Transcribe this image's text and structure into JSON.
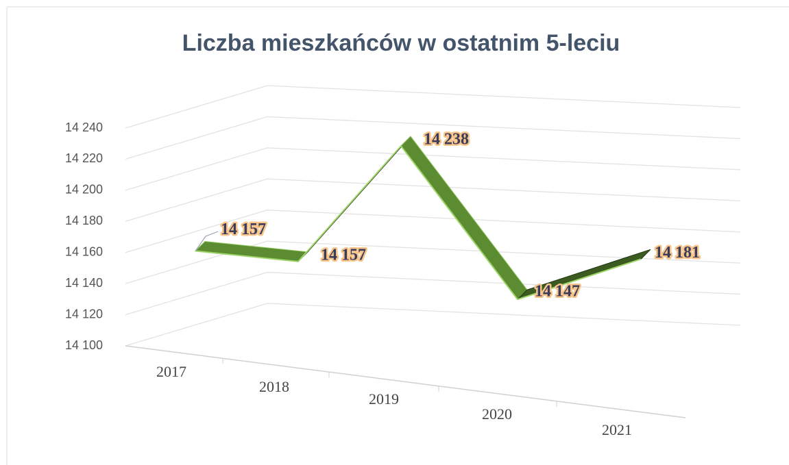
{
  "chart_data": {
    "type": "line",
    "title": "Liczba mieszkańców w ostatnim 5-leciu",
    "categories": [
      "2017",
      "2018",
      "2019",
      "2020",
      "2021"
    ],
    "series": [
      {
        "color": "#5b8c32",
        "values": [
          14157,
          14157,
          14238,
          14147,
          14181
        ],
        "value_labels": [
          "14 157",
          "14 157",
          "14 238",
          "14 147",
          "14 181"
        ]
      }
    ],
    "ylim": [
      14100,
      14240
    ],
    "yticks": [
      {
        "value": 14100,
        "label": "14 100"
      },
      {
        "value": 14120,
        "label": "14 120"
      },
      {
        "value": 14140,
        "label": "14 140"
      },
      {
        "value": 14160,
        "label": "14 160"
      },
      {
        "value": 14180,
        "label": "14 180"
      },
      {
        "value": 14200,
        "label": "14 200"
      },
      {
        "value": 14220,
        "label": "14 220"
      },
      {
        "value": 14240,
        "label": "14 240"
      }
    ],
    "grid": true
  }
}
